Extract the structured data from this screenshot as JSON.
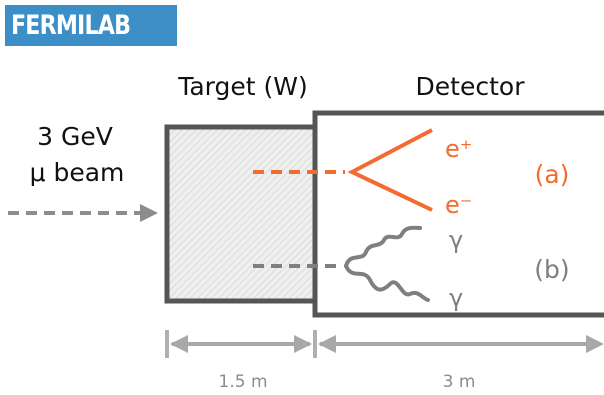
{
  "logo": {
    "text": "FERMILAB"
  },
  "labels": {
    "target": "Target (W)",
    "detector": "Detector",
    "beam_energy": "3 GeV",
    "beam_particle": "μ beam",
    "positron": "e⁺",
    "electron": "e⁻",
    "case_a": "(a)",
    "photon_1": "γ",
    "photon_2": "γ",
    "case_b": "(b)",
    "target_length": "1.5 m",
    "detector_length": "3 m"
  },
  "colors": {
    "box_stroke": "#555555",
    "process_a": "#f26b30",
    "process_b": "#7f7f7f",
    "dimension": "#9e9e9e",
    "logo_bg": "#3b8fc6"
  }
}
